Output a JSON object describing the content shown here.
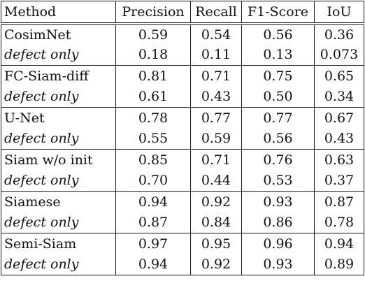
{
  "table": {
    "headers": [
      "Method",
      "Precision",
      "Recall",
      "F1-Score",
      "IoU"
    ],
    "groups": [
      {
        "method": "CosimNet",
        "values": [
          "0.59",
          "0.54",
          "0.56",
          "0.36"
        ],
        "sub_label": "defect only",
        "sub_values": [
          "0.18",
          "0.11",
          "0.13",
          "0.073"
        ],
        "bold": false
      },
      {
        "method": "FC-Siam-diff",
        "values": [
          "0.81",
          "0.71",
          "0.75",
          "0.65"
        ],
        "sub_label": "defect only",
        "sub_values": [
          "0.61",
          "0.43",
          "0.50",
          "0.34"
        ],
        "bold": false
      },
      {
        "method": "U-Net",
        "values": [
          "0.78",
          "0.77",
          "0.77",
          "0.67"
        ],
        "sub_label": "defect only",
        "sub_values": [
          "0.55",
          "0.59",
          "0.56",
          "0.43"
        ],
        "bold": false
      },
      {
        "method": "Siam w/o init",
        "values": [
          "0.85",
          "0.71",
          "0.76",
          "0.63"
        ],
        "sub_label": "defect only",
        "sub_values": [
          "0.70",
          "0.44",
          "0.53",
          "0.37"
        ],
        "bold": false
      },
      {
        "method": "Siamese",
        "values": [
          "0.94",
          "0.92",
          "0.93",
          "0.87"
        ],
        "sub_label": "defect only",
        "sub_values": [
          "0.87",
          "0.84",
          "0.86",
          "0.78"
        ],
        "bold": false
      },
      {
        "method": "Semi-Siam",
        "values": [
          "0.97",
          "0.95",
          "0.96",
          "0.94"
        ],
        "sub_label": "defect only",
        "sub_values": [
          "0.94",
          "0.92",
          "0.93",
          "0.89"
        ],
        "bold": true
      }
    ]
  }
}
